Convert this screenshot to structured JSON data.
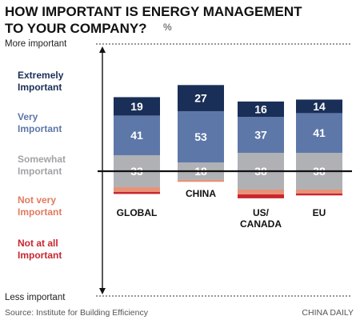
{
  "title": "HOW IMPORTANT IS ENERGY MANAGEMENT\nTO YOUR COMPANY?",
  "unit": "%",
  "source": "Source: Institute for Building Efficiency",
  "credit": "CHINA DAILY",
  "axis": {
    "top_label": "More important",
    "bottom_label": "Less important"
  },
  "chart_data": {
    "type": "bar",
    "stacked": true,
    "diverging": true,
    "categories": [
      "GLOBAL",
      "CHINA",
      "US/\nCANADA",
      "EU"
    ],
    "series": [
      {
        "name": "Extremely\nImportant",
        "color": "#1a2f57",
        "values": [
          19,
          27,
          16,
          14
        ],
        "side": "positive"
      },
      {
        "name": "Very\nImportant",
        "color": "#5d77a8",
        "values": [
          41,
          53,
          37,
          41
        ],
        "side": "positive"
      },
      {
        "name": "Somewhat\nImportant",
        "color": "#b0b1b5",
        "values": [
          33,
          18,
          38,
          38
        ],
        "side": "split"
      },
      {
        "name": "Not very\nImportant",
        "color": "#e89277",
        "values": [
          5,
          2,
          5,
          4
        ],
        "side": "negative"
      },
      {
        "name": "Not at all\nImportant",
        "color": "#c8262f",
        "values": [
          2,
          0,
          4,
          2
        ],
        "side": "negative"
      }
    ],
    "legend_colors": [
      "#1a2f57",
      "#5d77a8",
      "#a3a3a6",
      "#e27b5e",
      "#c8262f"
    ],
    "legend_position": "left"
  }
}
